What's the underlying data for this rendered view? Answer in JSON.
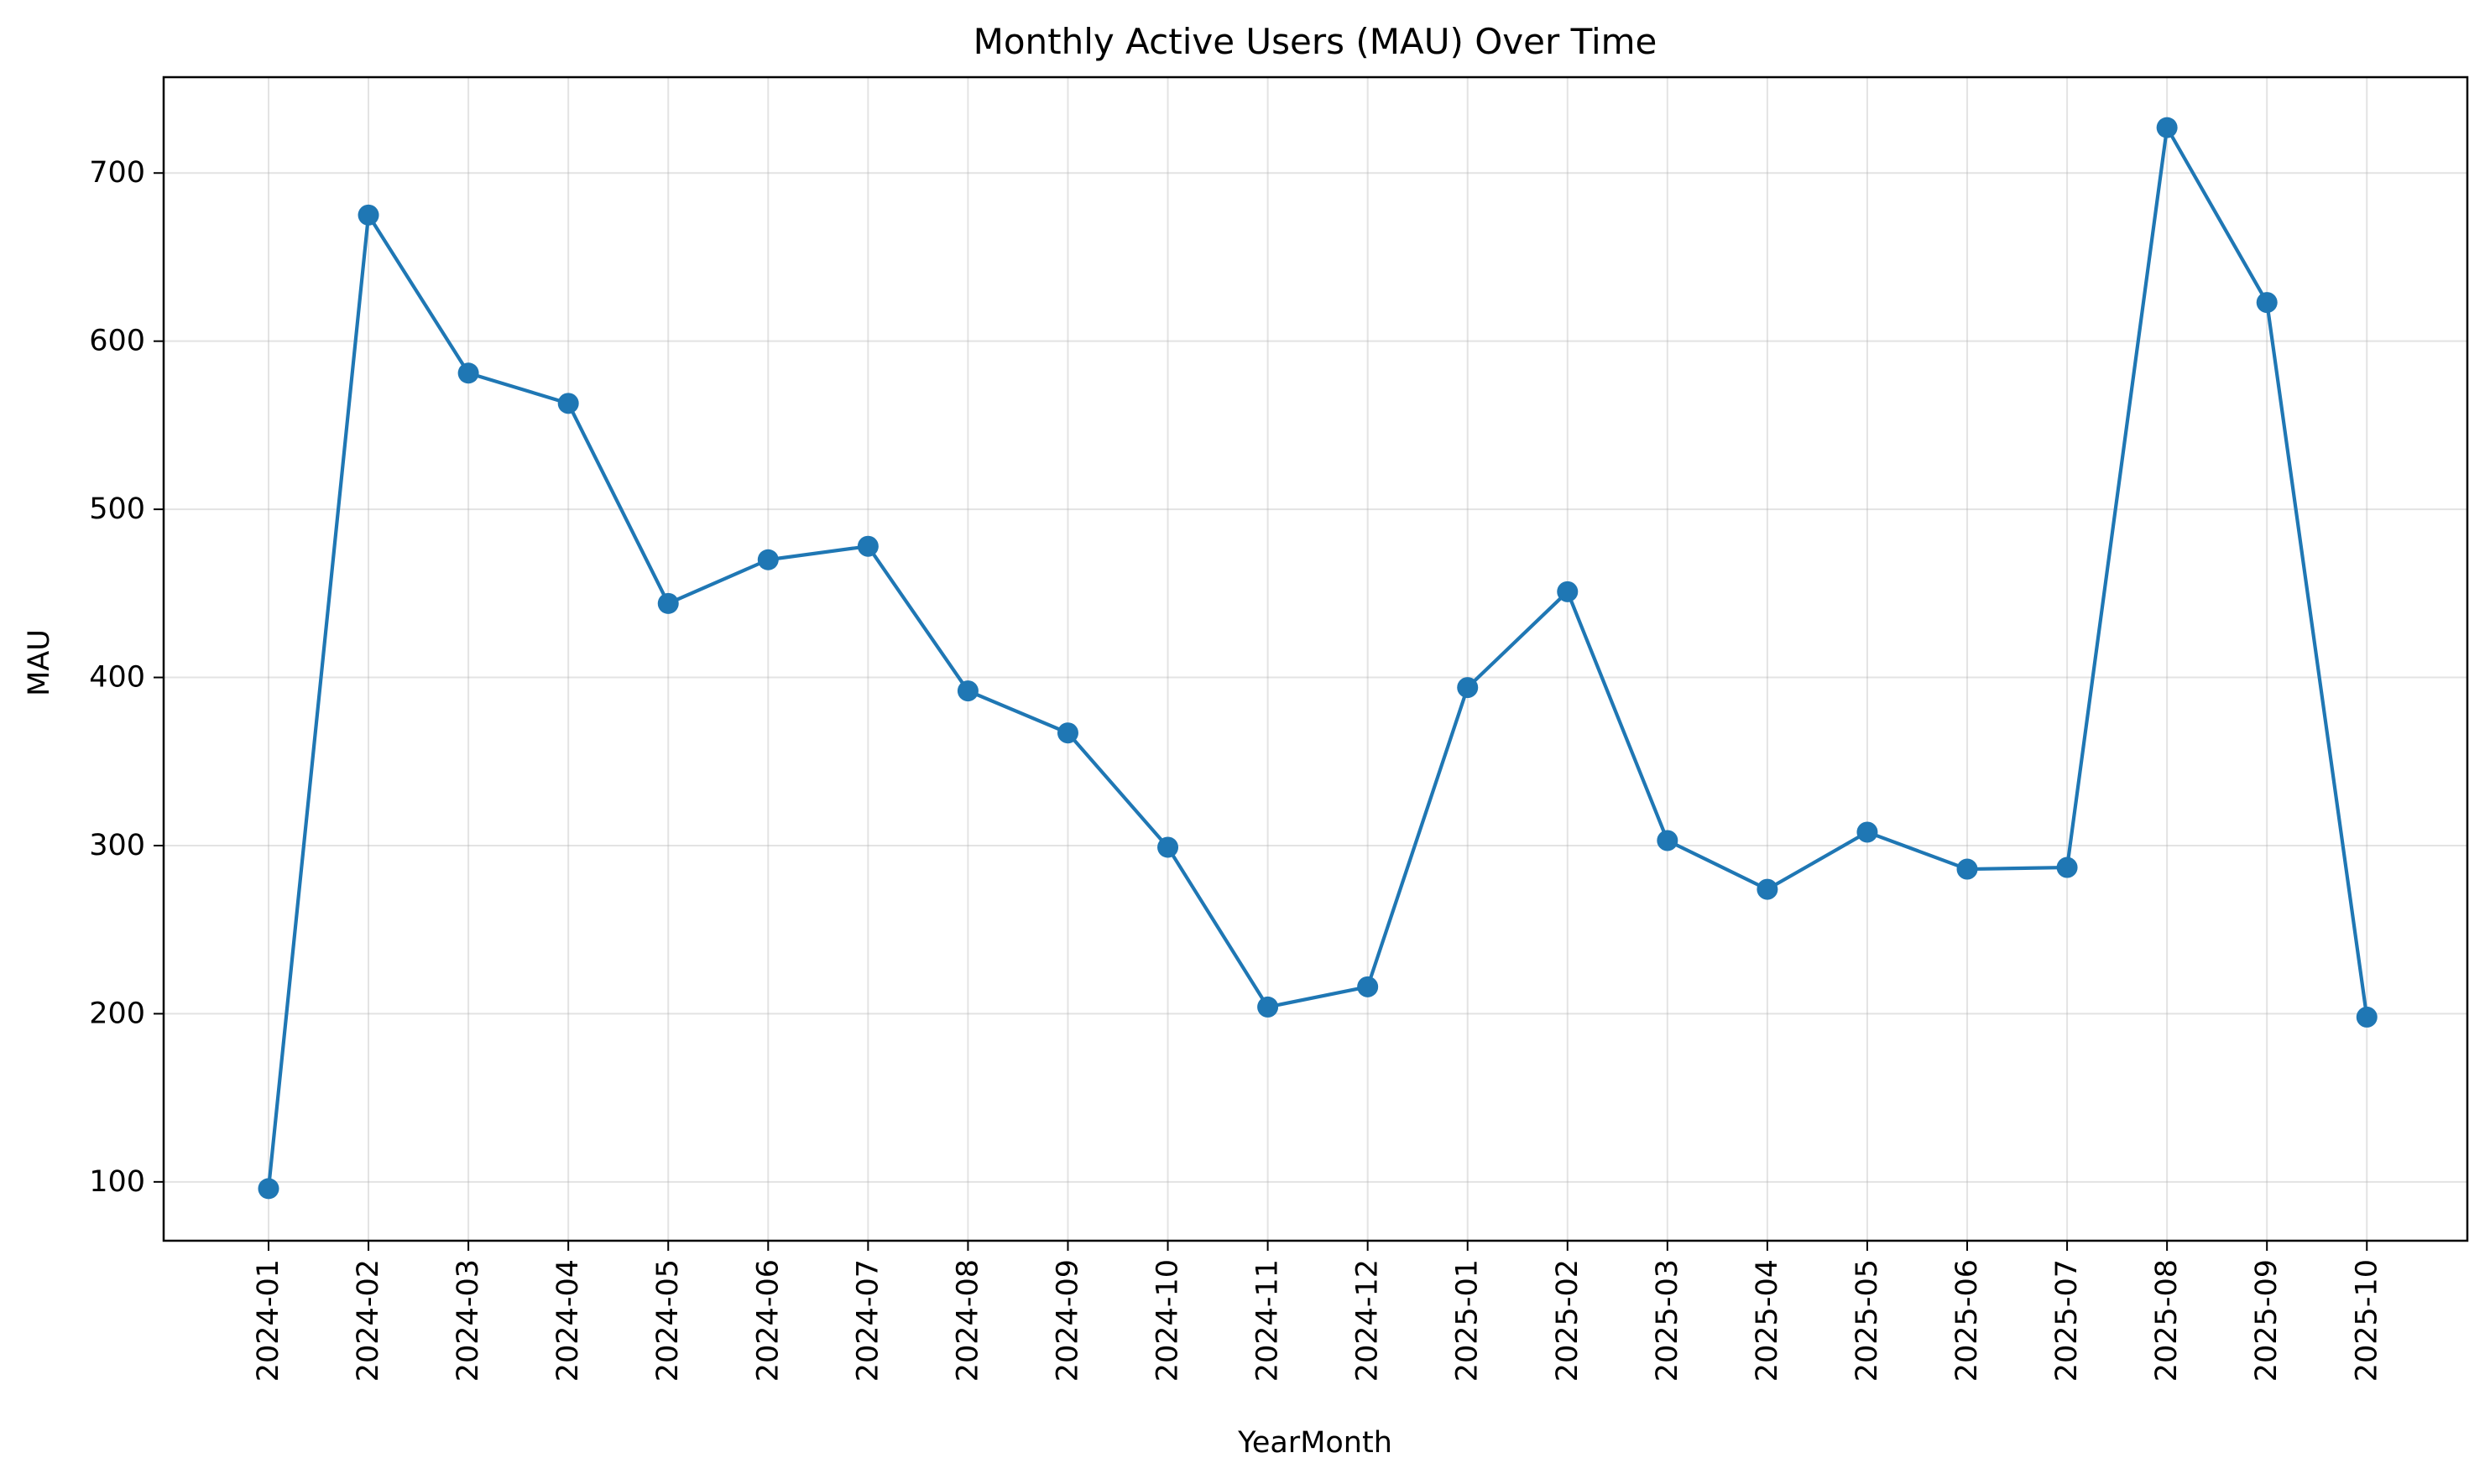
{
  "chart_data": {
    "type": "line",
    "title": "Monthly Active Users (MAU) Over Time",
    "xlabel": "YearMonth",
    "ylabel": "MAU",
    "categories": [
      "2024-01",
      "2024-02",
      "2024-03",
      "2024-04",
      "2024-05",
      "2024-06",
      "2024-07",
      "2024-08",
      "2024-09",
      "2024-10",
      "2024-11",
      "2024-12",
      "2025-01",
      "2025-02",
      "2025-03",
      "2025-04",
      "2025-05",
      "2025-06",
      "2025-07",
      "2025-08",
      "2025-09",
      "2025-10"
    ],
    "series": [
      {
        "values": [
          96,
          675,
          581,
          563,
          444,
          470,
          478,
          392,
          367,
          299,
          204,
          216,
          394,
          451,
          303,
          274,
          308,
          286,
          287,
          727,
          623,
          198
        ],
        "color": "#1f77b4",
        "marker": "circle"
      }
    ],
    "ylim": [
      65,
      757
    ],
    "yticks": [
      100,
      200,
      300,
      400,
      500,
      600,
      700
    ],
    "grid": true,
    "legend": "none"
  }
}
